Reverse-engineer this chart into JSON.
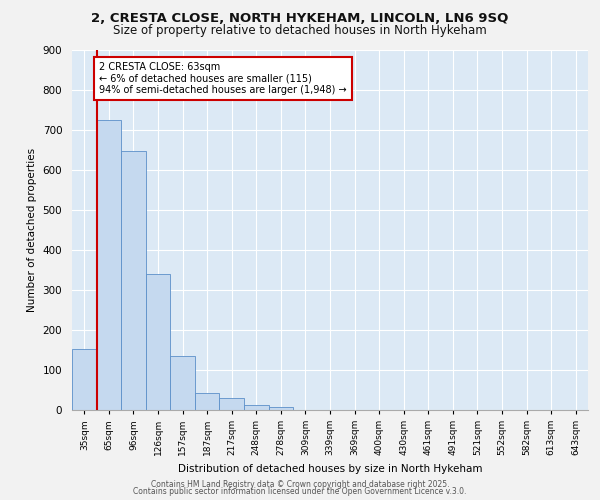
{
  "title_line1": "2, CRESTA CLOSE, NORTH HYKEHAM, LINCOLN, LN6 9SQ",
  "title_line2": "Size of property relative to detached houses in North Hykeham",
  "xlabel": "Distribution of detached houses by size in North Hykeham",
  "ylabel": "Number of detached properties",
  "bar_labels": [
    "35sqm",
    "65sqm",
    "96sqm",
    "126sqm",
    "157sqm",
    "187sqm",
    "217sqm",
    "248sqm",
    "278sqm",
    "309sqm",
    "339sqm",
    "369sqm",
    "400sqm",
    "430sqm",
    "461sqm",
    "491sqm",
    "521sqm",
    "552sqm",
    "582sqm",
    "613sqm",
    "643sqm"
  ],
  "bar_values": [
    152,
    724,
    648,
    341,
    134,
    42,
    30,
    13,
    8,
    0,
    0,
    0,
    0,
    0,
    0,
    0,
    0,
    0,
    0,
    0,
    0
  ],
  "bar_color": "#c5d9ef",
  "bar_edge_color": "#5b8fc9",
  "background_color": "#dce9f5",
  "figure_background": "#f2f2f2",
  "vline_color": "#cc0000",
  "annotation_text": "2 CRESTA CLOSE: 63sqm\n← 6% of detached houses are smaller (115)\n94% of semi-detached houses are larger (1,948) →",
  "annotation_box_color": "#ffffff",
  "annotation_edge_color": "#cc0000",
  "ylim": [
    0,
    900
  ],
  "yticks": [
    0,
    100,
    200,
    300,
    400,
    500,
    600,
    700,
    800,
    900
  ],
  "footer_line1": "Contains HM Land Registry data © Crown copyright and database right 2025.",
  "footer_line2": "Contains public sector information licensed under the Open Government Licence v.3.0."
}
